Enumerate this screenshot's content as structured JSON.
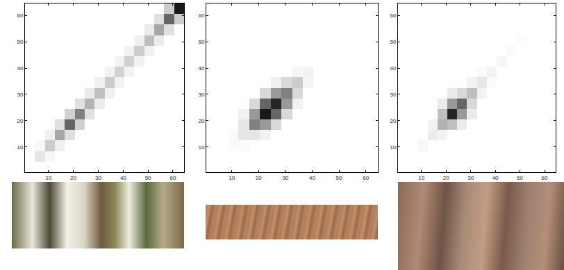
{
  "chart_data": [
    {
      "type": "heatmap",
      "x": [
        2.5,
        6.5,
        10.5,
        14.5,
        18.5,
        22.5,
        26.5,
        30.5,
        34.5,
        38.5,
        42.5,
        46.5,
        50.5,
        54.5,
        58.5,
        62.5
      ],
      "y": [
        2.5,
        6.5,
        10.5,
        14.5,
        18.5,
        22.5,
        26.5,
        30.5,
        34.5,
        38.5,
        42.5,
        46.5,
        50.5,
        54.5,
        58.5,
        62.5
      ],
      "z": [
        [
          0,
          0,
          0,
          0,
          0,
          0,
          0,
          0,
          0,
          0,
          0,
          0,
          0,
          0,
          0,
          0
        ],
        [
          0,
          0.1,
          0.03,
          0,
          0,
          0,
          0,
          0,
          0,
          0,
          0,
          0,
          0,
          0,
          0,
          0
        ],
        [
          0,
          0.03,
          0.2,
          0.06,
          0,
          0,
          0,
          0,
          0,
          0,
          0,
          0,
          0,
          0,
          0,
          0
        ],
        [
          0,
          0,
          0.06,
          0.35,
          0.12,
          0,
          0,
          0,
          0,
          0,
          0,
          0,
          0,
          0,
          0,
          0
        ],
        [
          0,
          0,
          0,
          0.12,
          0.6,
          0.18,
          0,
          0,
          0,
          0,
          0,
          0,
          0,
          0,
          0,
          0
        ],
        [
          0,
          0,
          0,
          0,
          0.18,
          0.5,
          0.12,
          0,
          0,
          0,
          0,
          0,
          0,
          0,
          0,
          0
        ],
        [
          0,
          0,
          0,
          0,
          0,
          0.12,
          0.3,
          0.08,
          0,
          0,
          0,
          0,
          0,
          0,
          0,
          0
        ],
        [
          0,
          0,
          0,
          0,
          0,
          0,
          0.08,
          0.25,
          0.06,
          0,
          0,
          0,
          0,
          0,
          0,
          0
        ],
        [
          0,
          0,
          0,
          0,
          0,
          0,
          0,
          0.06,
          0.2,
          0.05,
          0,
          0,
          0,
          0,
          0,
          0
        ],
        [
          0,
          0,
          0,
          0,
          0,
          0,
          0,
          0,
          0.05,
          0.18,
          0.05,
          0,
          0,
          0,
          0,
          0
        ],
        [
          0,
          0,
          0,
          0,
          0,
          0,
          0,
          0,
          0,
          0.05,
          0.18,
          0.05,
          0,
          0,
          0,
          0
        ],
        [
          0,
          0,
          0,
          0,
          0,
          0,
          0,
          0,
          0,
          0,
          0.05,
          0.2,
          0.06,
          0,
          0,
          0
        ],
        [
          0,
          0,
          0,
          0,
          0,
          0,
          0,
          0,
          0,
          0,
          0,
          0.06,
          0.25,
          0.08,
          0,
          0
        ],
        [
          0,
          0,
          0,
          0,
          0,
          0,
          0,
          0,
          0,
          0,
          0,
          0,
          0.08,
          0.35,
          0.12,
          0
        ],
        [
          0,
          0,
          0,
          0,
          0,
          0,
          0,
          0,
          0,
          0,
          0,
          0,
          0,
          0.12,
          0.6,
          0.2
        ],
        [
          0,
          0,
          0,
          0,
          0,
          0,
          0,
          0,
          0,
          0,
          0,
          0,
          0,
          0,
          0.2,
          0.9
        ]
      ],
      "zlim": [
        0,
        1
      ],
      "xlim": [
        0.5,
        64.5
      ],
      "ylim": [
        0.5,
        64.5
      ],
      "xticks": [
        10,
        20,
        30,
        40,
        50,
        60
      ],
      "yticks": [
        10,
        20,
        30,
        40,
        50,
        60
      ]
    },
    {
      "type": "heatmap",
      "x": [
        2.5,
        6.5,
        10.5,
        14.5,
        18.5,
        22.5,
        26.5,
        30.5,
        34.5,
        38.5,
        42.5,
        46.5,
        50.5,
        54.5,
        58.5,
        62.5
      ],
      "y": [
        2.5,
        6.5,
        10.5,
        14.5,
        18.5,
        22.5,
        26.5,
        30.5,
        34.5,
        38.5,
        42.5,
        46.5,
        50.5,
        54.5,
        58.5,
        62.5
      ],
      "z": [
        [
          0,
          0,
          0,
          0,
          0,
          0,
          0,
          0,
          0,
          0,
          0,
          0,
          0,
          0,
          0,
          0
        ],
        [
          0,
          0,
          0,
          0,
          0,
          0,
          0,
          0,
          0,
          0,
          0,
          0,
          0,
          0,
          0,
          0
        ],
        [
          0,
          0,
          0.02,
          0.02,
          0,
          0,
          0,
          0,
          0,
          0,
          0,
          0,
          0,
          0,
          0,
          0
        ],
        [
          0,
          0,
          0.02,
          0.1,
          0.1,
          0.05,
          0,
          0,
          0,
          0,
          0,
          0,
          0,
          0,
          0,
          0
        ],
        [
          0,
          0,
          0,
          0.1,
          0.5,
          0.4,
          0.15,
          0,
          0,
          0,
          0,
          0,
          0,
          0,
          0,
          0
        ],
        [
          0,
          0,
          0,
          0.05,
          0.4,
          0.9,
          0.6,
          0.15,
          0,
          0,
          0,
          0,
          0,
          0,
          0,
          0
        ],
        [
          0,
          0,
          0,
          0,
          0.15,
          0.6,
          0.85,
          0.4,
          0.06,
          0,
          0,
          0,
          0,
          0,
          0,
          0
        ],
        [
          0,
          0,
          0,
          0,
          0,
          0.15,
          0.4,
          0.5,
          0.15,
          0,
          0,
          0,
          0,
          0,
          0,
          0
        ],
        [
          0,
          0,
          0,
          0,
          0,
          0,
          0.06,
          0.15,
          0.2,
          0.04,
          0,
          0,
          0,
          0,
          0,
          0
        ],
        [
          0,
          0,
          0,
          0,
          0,
          0,
          0,
          0,
          0.04,
          0.05,
          0,
          0,
          0,
          0,
          0,
          0
        ],
        [
          0,
          0,
          0,
          0,
          0,
          0,
          0,
          0,
          0,
          0,
          0,
          0,
          0,
          0,
          0,
          0
        ],
        [
          0,
          0,
          0,
          0,
          0,
          0,
          0,
          0,
          0,
          0,
          0,
          0,
          0,
          0,
          0,
          0
        ],
        [
          0,
          0,
          0,
          0,
          0,
          0,
          0,
          0,
          0,
          0,
          0,
          0,
          0,
          0,
          0,
          0
        ],
        [
          0,
          0,
          0,
          0,
          0,
          0,
          0,
          0,
          0,
          0,
          0,
          0,
          0,
          0,
          0,
          0
        ],
        [
          0,
          0,
          0,
          0,
          0,
          0,
          0,
          0,
          0,
          0,
          0,
          0,
          0,
          0,
          0,
          0
        ],
        [
          0,
          0,
          0,
          0,
          0,
          0,
          0,
          0,
          0,
          0,
          0,
          0,
          0,
          0,
          0,
          0
        ]
      ],
      "zlim": [
        0,
        1
      ],
      "xlim": [
        0.5,
        64.5
      ],
      "ylim": [
        0.5,
        64.5
      ],
      "xticks": [
        10,
        20,
        30,
        40,
        50,
        60
      ],
      "yticks": [
        10,
        20,
        30,
        40,
        50,
        60
      ]
    },
    {
      "type": "heatmap",
      "x": [
        2.5,
        6.5,
        10.5,
        14.5,
        18.5,
        22.5,
        26.5,
        30.5,
        34.5,
        38.5,
        42.5,
        46.5,
        50.5,
        54.5,
        58.5,
        62.5
      ],
      "y": [
        2.5,
        6.5,
        10.5,
        14.5,
        18.5,
        22.5,
        26.5,
        30.5,
        34.5,
        38.5,
        42.5,
        46.5,
        50.5,
        54.5,
        58.5,
        62.5
      ],
      "z": [
        [
          0,
          0,
          0,
          0,
          0,
          0,
          0,
          0,
          0,
          0,
          0,
          0,
          0,
          0,
          0,
          0
        ],
        [
          0,
          0,
          0,
          0,
          0,
          0,
          0,
          0,
          0,
          0,
          0,
          0,
          0,
          0,
          0,
          0
        ],
        [
          0,
          0,
          0.03,
          0,
          0,
          0,
          0,
          0,
          0,
          0,
          0,
          0,
          0,
          0,
          0,
          0
        ],
        [
          0,
          0,
          0,
          0.08,
          0.05,
          0,
          0,
          0,
          0,
          0,
          0,
          0,
          0,
          0,
          0,
          0
        ],
        [
          0,
          0,
          0,
          0.05,
          0.3,
          0.25,
          0.08,
          0,
          0,
          0,
          0,
          0,
          0,
          0,
          0,
          0
        ],
        [
          0,
          0,
          0,
          0,
          0.25,
          0.85,
          0.4,
          0.08,
          0,
          0,
          0,
          0,
          0,
          0,
          0,
          0
        ],
        [
          0,
          0,
          0,
          0,
          0.08,
          0.4,
          0.6,
          0.15,
          0,
          0,
          0,
          0,
          0,
          0,
          0,
          0
        ],
        [
          0,
          0,
          0,
          0,
          0,
          0.08,
          0.15,
          0.25,
          0.05,
          0,
          0,
          0,
          0,
          0,
          0,
          0
        ],
        [
          0,
          0,
          0,
          0,
          0,
          0,
          0,
          0.05,
          0.1,
          0.02,
          0,
          0,
          0,
          0,
          0,
          0
        ],
        [
          0,
          0,
          0,
          0,
          0,
          0,
          0,
          0,
          0.02,
          0.05,
          0,
          0,
          0,
          0,
          0,
          0
        ],
        [
          0,
          0,
          0,
          0,
          0,
          0,
          0,
          0,
          0,
          0,
          0.03,
          0,
          0,
          0,
          0,
          0
        ],
        [
          0,
          0,
          0,
          0,
          0,
          0,
          0,
          0,
          0,
          0,
          0,
          0.02,
          0,
          0,
          0,
          0
        ],
        [
          0,
          0,
          0,
          0,
          0,
          0,
          0,
          0,
          0,
          0,
          0,
          0,
          0.01,
          0,
          0,
          0
        ],
        [
          0,
          0,
          0,
          0,
          0,
          0,
          0,
          0,
          0,
          0,
          0,
          0,
          0,
          0,
          0,
          0
        ],
        [
          0,
          0,
          0,
          0,
          0,
          0,
          0,
          0,
          0,
          0,
          0,
          0,
          0,
          0,
          0,
          0
        ],
        [
          0,
          0,
          0,
          0,
          0,
          0,
          0,
          0,
          0,
          0,
          0,
          0,
          0,
          0,
          0,
          0
        ]
      ],
      "zlim": [
        0,
        1
      ],
      "xlim": [
        0.5,
        64.5
      ],
      "ylim": [
        0.5,
        64.5
      ],
      "xticks": [
        10,
        20,
        30,
        40,
        50,
        60
      ],
      "yticks": [
        10,
        20,
        30,
        40,
        50,
        60
      ]
    }
  ]
}
